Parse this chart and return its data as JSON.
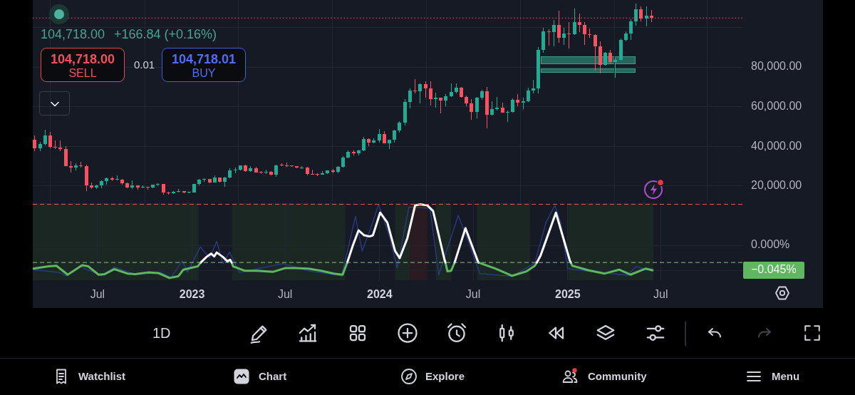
{
  "chart_data": [
    {
      "type": "candlestick",
      "x": [
        "2022-03-01",
        "2022-03-11",
        "2022-03-21",
        "2022-03-31",
        "2022-04-10",
        "2022-04-20",
        "2022-04-30",
        "2022-05-10",
        "2022-05-20",
        "2022-05-30",
        "2022-06-09",
        "2022-06-19",
        "2022-06-29",
        "2022-07-09",
        "2022-07-19",
        "2022-07-29",
        "2022-08-08",
        "2022-08-18",
        "2022-08-28",
        "2022-09-07",
        "2022-09-17",
        "2022-09-27",
        "2022-10-07",
        "2022-10-17",
        "2022-10-27",
        "2022-11-06",
        "2022-11-16",
        "2022-11-26",
        "2022-12-06",
        "2022-12-16",
        "2022-12-26",
        "2023-01-05",
        "2023-01-15",
        "2023-01-25",
        "2023-02-04",
        "2023-02-14",
        "2023-02-24",
        "2023-03-06",
        "2023-03-16",
        "2023-03-26",
        "2023-04-05",
        "2023-04-15",
        "2023-04-25",
        "2023-05-05",
        "2023-05-15",
        "2023-05-25",
        "2023-06-04",
        "2023-06-14",
        "2023-06-24",
        "2023-07-04",
        "2023-07-14",
        "2023-07-24",
        "2023-08-03",
        "2023-08-13",
        "2023-08-23",
        "2023-09-02",
        "2023-09-12",
        "2023-09-22",
        "2023-10-02",
        "2023-10-12",
        "2023-10-22",
        "2023-11-01",
        "2023-11-11",
        "2023-11-21",
        "2023-12-01",
        "2023-12-11",
        "2023-12-21",
        "2023-12-31",
        "2024-01-10",
        "2024-01-20",
        "2024-01-30",
        "2024-02-09",
        "2024-02-19",
        "2024-02-29",
        "2024-03-10",
        "2024-03-20",
        "2024-03-30",
        "2024-04-09",
        "2024-04-19",
        "2024-04-29",
        "2024-05-09",
        "2024-05-19",
        "2024-05-29",
        "2024-06-08",
        "2024-06-18",
        "2024-06-28",
        "2024-07-08",
        "2024-07-18",
        "2024-07-28",
        "2024-08-07",
        "2024-08-17",
        "2024-08-27",
        "2024-09-06",
        "2024-09-16",
        "2024-09-26",
        "2024-10-06",
        "2024-10-16",
        "2024-10-26",
        "2024-11-05",
        "2024-11-15",
        "2024-11-25",
        "2024-12-05",
        "2024-12-15",
        "2024-12-25",
        "2025-01-04",
        "2025-01-14",
        "2025-01-24",
        "2025-02-03",
        "2025-02-13",
        "2025-02-23",
        "2025-03-05",
        "2025-03-15",
        "2025-03-25",
        "2025-04-04",
        "2025-04-14",
        "2025-04-24",
        "2025-05-04",
        "2025-05-14",
        "2025-05-24",
        "2025-06-03",
        "2025-06-13"
      ],
      "ohlc": [
        [
          43200,
          45400,
          37600,
          39000
        ],
        [
          39000,
          42300,
          37600,
          41200
        ],
        [
          41200,
          48200,
          40500,
          45500
        ],
        [
          45500,
          47400,
          39200,
          39700
        ],
        [
          39700,
          42900,
          38500,
          39500
        ],
        [
          39500,
          42900,
          37700,
          38500
        ],
        [
          38500,
          40000,
          30000,
          30100
        ],
        [
          30100,
          32600,
          26700,
          29200
        ],
        [
          29200,
          31500,
          28000,
          30400
        ],
        [
          30400,
          32200,
          29200,
          30100
        ],
        [
          30100,
          30700,
          17600,
          20500
        ],
        [
          20500,
          21900,
          18700,
          19200
        ],
        [
          19200,
          20800,
          18600,
          20500
        ],
        [
          20500,
          22900,
          18900,
          22600
        ],
        [
          22600,
          24300,
          20700,
          23800
        ],
        [
          23800,
          24600,
          22400,
          23200
        ],
        [
          23200,
          25200,
          22800,
          23300
        ],
        [
          23300,
          23500,
          20800,
          21400
        ],
        [
          21400,
          21600,
          19000,
          19300
        ],
        [
          19300,
          22800,
          18600,
          20200
        ],
        [
          20200,
          20400,
          18200,
          19400
        ],
        [
          19400,
          20500,
          18900,
          19500
        ],
        [
          19500,
          19700,
          18200,
          19200
        ],
        [
          19200,
          20800,
          18900,
          20600
        ],
        [
          20600,
          21500,
          20100,
          20900
        ],
        [
          20900,
          21100,
          15600,
          16800
        ],
        [
          16800,
          17000,
          15500,
          16500
        ],
        [
          16500,
          17400,
          16000,
          17100
        ],
        [
          17100,
          18400,
          16900,
          17400
        ],
        [
          17400,
          17500,
          16500,
          16700
        ],
        [
          16700,
          17000,
          16300,
          16900
        ],
        [
          16900,
          21200,
          16800,
          20900
        ],
        [
          20900,
          23400,
          20400,
          23100
        ],
        [
          23100,
          24000,
          22300,
          23400
        ],
        [
          23400,
          23500,
          21400,
          21800
        ],
        [
          21800,
          25200,
          21600,
          24200
        ],
        [
          24200,
          24300,
          21900,
          22200
        ],
        [
          22200,
          24500,
          19600,
          24200
        ],
        [
          24200,
          28900,
          24100,
          27800
        ],
        [
          27800,
          29200,
          26600,
          28300
        ],
        [
          28300,
          30500,
          27800,
          30300
        ],
        [
          30300,
          30900,
          27100,
          27500
        ],
        [
          27500,
          30000,
          27200,
          28800
        ],
        [
          28800,
          29700,
          26700,
          26900
        ],
        [
          26900,
          27500,
          26200,
          26700
        ],
        [
          26700,
          28400,
          26100,
          27200
        ],
        [
          27200,
          27400,
          25400,
          25900
        ],
        [
          25900,
          30800,
          24800,
          30500
        ],
        [
          30500,
          31400,
          29900,
          30400
        ],
        [
          30400,
          31800,
          29700,
          30300
        ],
        [
          30300,
          30500,
          29600,
          29900
        ],
        [
          29900,
          30000,
          28900,
          29200
        ],
        [
          29200,
          29900,
          28700,
          29400
        ],
        [
          29400,
          29500,
          25200,
          26100
        ],
        [
          26100,
          28100,
          25800,
          25900
        ],
        [
          25900,
          26300,
          24900,
          25800
        ],
        [
          25800,
          27400,
          25600,
          26600
        ],
        [
          26600,
          28000,
          26000,
          27900
        ],
        [
          27900,
          28600,
          26600,
          27100
        ],
        [
          27100,
          30000,
          26500,
          29500
        ],
        [
          29500,
          35200,
          29400,
          34500
        ],
        [
          34500,
          37900,
          34100,
          37300
        ],
        [
          37300,
          37900,
          35500,
          36600
        ],
        [
          36600,
          38400,
          35600,
          37800
        ],
        [
          37800,
          44700,
          37600,
          43800
        ],
        [
          43800,
          43900,
          40200,
          41900
        ],
        [
          41900,
          44000,
          41400,
          42800
        ],
        [
          42800,
          48900,
          42000,
          46100
        ],
        [
          46100,
          47700,
          41500,
          41600
        ],
        [
          41600,
          43500,
          38500,
          43300
        ],
        [
          43300,
          48200,
          41900,
          47900
        ],
        [
          47900,
          52800,
          47000,
          51800
        ],
        [
          51800,
          64000,
          50500,
          62500
        ],
        [
          62500,
          69200,
          59000,
          68300
        ],
        [
          68300,
          73800,
          66700,
          67900
        ],
        [
          67900,
          71700,
          61500,
          71300
        ],
        [
          71300,
          72700,
          64500,
          69100
        ],
        [
          69100,
          72800,
          60700,
          63900
        ],
        [
          63900,
          67200,
          59600,
          64400
        ],
        [
          64400,
          64700,
          56500,
          63100
        ],
        [
          63100,
          66400,
          60200,
          65200
        ],
        [
          65200,
          71900,
          65000,
          67500
        ],
        [
          67500,
          71900,
          66600,
          69600
        ],
        [
          69600,
          70000,
          64500,
          64900
        ],
        [
          64900,
          65800,
          60400,
          61600
        ],
        [
          61600,
          63900,
          53500,
          57500
        ],
        [
          57500,
          64900,
          54300,
          64600
        ],
        [
          64600,
          68400,
          63300,
          67800
        ],
        [
          67800,
          70000,
          49000,
          56000
        ],
        [
          56000,
          62700,
          55500,
          58700
        ],
        [
          58700,
          65000,
          58000,
          59400
        ],
        [
          59400,
          62200,
          56900,
          57000
        ],
        [
          57000,
          58200,
          52500,
          57300
        ],
        [
          57300,
          64100,
          57100,
          63300
        ],
        [
          63300,
          66500,
          60300,
          62100
        ],
        [
          62100,
          64500,
          58900,
          62600
        ],
        [
          62600,
          69500,
          62400,
          68000
        ],
        [
          68000,
          73600,
          66800,
          69400
        ],
        [
          69400,
          89900,
          66800,
          88700
        ],
        [
          88700,
          99600,
          87100,
          98000
        ],
        [
          98000,
          99000,
          90800,
          97700
        ],
        [
          97700,
          103900,
          90500,
          101200
        ],
        [
          101200,
          108300,
          92200,
          94900
        ],
        [
          94900,
          99900,
          91300,
          96900
        ],
        [
          96900,
          102700,
          89300,
          96500
        ],
        [
          96500,
          109500,
          96300,
          102500
        ],
        [
          102500,
          106800,
          97800,
          101300
        ],
        [
          101300,
          102500,
          91200,
          96600
        ],
        [
          96600,
          99400,
          94900,
          96200
        ],
        [
          96200,
          96500,
          78200,
          90600
        ],
        [
          90600,
          92800,
          76600,
          81000
        ],
        [
          81000,
          87500,
          80800,
          87300
        ],
        [
          87300,
          88700,
          81600,
          82600
        ],
        [
          82600,
          84700,
          74500,
          83600
        ],
        [
          83600,
          94500,
          83100,
          93600
        ],
        [
          93600,
          97900,
          92800,
          96900
        ],
        [
          96900,
          104100,
          93500,
          102900
        ],
        [
          102900,
          111900,
          101000,
          109000
        ],
        [
          109000,
          110400,
          103100,
          104600
        ],
        [
          104600,
          110500,
          100400,
          106000
        ],
        [
          106000,
          108900,
          102700,
          104718
        ]
      ],
      "colors": [
        "#f7525f",
        "#22ab94",
        "#22ab94",
        "#f7525f",
        "#f7525f",
        "#f7525f",
        "#f7525f",
        "#f7525f",
        "#22ab94",
        "#f7525f",
        "#f7525f",
        "#f7525f",
        "#22ab94",
        "#22ab94",
        "#22ab94",
        "#f7525f",
        "#22ab94",
        "#f7525f",
        "#f7525f",
        "#22ab94",
        "#f7525f",
        "#22ab94",
        "#f7525f",
        "#22ab94",
        "#22ab94",
        "#f7525f",
        "#f7525f",
        "#22ab94",
        "#22ab94",
        "#f7525f",
        "#22ab94",
        "#22ab94",
        "#22ab94",
        "#22ab94",
        "#f7525f",
        "#22ab94",
        "#f7525f",
        "#22ab94",
        "#22ab94",
        "#22ab94",
        "#22ab94",
        "#f7525f",
        "#22ab94",
        "#f7525f",
        "#f7525f",
        "#22ab94",
        "#f7525f",
        "#22ab94",
        "#f7525f",
        "#f7525f",
        "#f7525f",
        "#f7525f",
        "#22ab94",
        "#f7525f",
        "#f7525f",
        "#f7525f",
        "#22ab94",
        "#22ab94",
        "#f7525f",
        "#22ab94",
        "#22ab94",
        "#22ab94",
        "#f7525f",
        "#22ab94",
        "#22ab94",
        "#f7525f",
        "#22ab94",
        "#22ab94",
        "#f7525f",
        "#22ab94",
        "#22ab94",
        "#22ab94",
        "#22ab94",
        "#22ab94",
        "#f7525f",
        "#22ab94",
        "#f7525f",
        "#f7525f",
        "#22ab94",
        "#f7525f",
        "#22ab94",
        "#22ab94",
        "#22ab94",
        "#f7525f",
        "#f7525f",
        "#f7525f",
        "#22ab94",
        "#22ab94",
        "#f7525f",
        "#22ab94",
        "#22ab94",
        "#f7525f",
        "#22ab94",
        "#22ab94",
        "#f7525f",
        "#22ab94",
        "#22ab94",
        "#22ab94",
        "#22ab94",
        "#22ab94",
        "#f7525f",
        "#22ab94",
        "#f7525f",
        "#22ab94",
        "#f7525f",
        "#22ab94",
        "#f7525f",
        "#f7525f",
        "#f7525f",
        "#f7525f",
        "#f7525f",
        "#22ab94",
        "#f7525f",
        "#22ab94",
        "#22ab94",
        "#22ab94",
        "#22ab94",
        "#22ab94",
        "#f7525f",
        "#22ab94",
        "#f7525f"
      ],
      "xlim": [
        "2022-02-25",
        "2025-12-07"
      ],
      "xticks": [
        {
          "value": "2022-07-01",
          "label": null
        },
        {
          "value": "2023-01-01",
          "label": null
        },
        {
          "value": "2023-07-01",
          "label": null
        },
        {
          "value": "2024-01-01",
          "label": null
        },
        {
          "value": "2024-07-01",
          "label": null
        },
        {
          "value": "2025-01-01",
          "label": null
        },
        {
          "value": "2025-07-01",
          "label": null
        }
      ],
      "ylim": [
        11700,
        113800
      ],
      "yticks": [
        {
          "value": 20000,
          "label": "20,000.00"
        },
        {
          "value": 40000,
          "label": "40,000.00"
        },
        {
          "value": 60000,
          "label": "60,000.00"
        },
        {
          "value": 80000,
          "label": "80,000.00"
        },
        {
          "value": 100000,
          "label": null
        }
      ],
      "grid": true,
      "tick_labels": "y",
      "ref_lines": [
        {
          "axis": "y",
          "value": 104718,
          "color": "#f7525f",
          "line_style": "dotted"
        }
      ],
      "annotations": [
        "104,718.00",
        "+166.84 (+0.16%)",
        "104,718.00",
        "SELL",
        "0.01",
        "104,718.01",
        "BUY"
      ]
    },
    {
      "type": "line",
      "series": [
        {
          "color": "#ffffff",
          "x": [
            "2023-01-18",
            "2023-01-29",
            "2023-02-07",
            "2023-02-13",
            "2023-02-18",
            "2023-03-02",
            "2023-03-11",
            "2023-03-16",
            "2023-03-19",
            "2023-06-01",
            "2023-10-30",
            "2023-11-10",
            "2023-11-21",
            "2023-12-02",
            "2023-12-12",
            "2023-12-19",
            "2024-01-02",
            "2024-01-16",
            "2024-01-31",
            "2024-02-09",
            "2024-02-24",
            "2024-03-10",
            "2024-03-20",
            "2024-04-03",
            "2024-04-14",
            "2024-05-06",
            "2024-05-08",
            "2024-05-17",
            "2024-05-26",
            "2024-06-16",
            "2024-07-11",
            "2024-09-01",
            "2024-11-02",
            "2024-11-09",
            "2024-12-09",
            "2025-01-05",
            "2025-01-07"
          ],
          "values": [
            -0.031,
            -0.021,
            -0.015,
            -0.02,
            -0.013,
            -0.021,
            -0.029,
            -0.026,
            -0.031,
            null,
            -0.031,
            0.0,
            0.027,
            0.018,
            0.016,
            0.018,
            0.059,
            0.041,
            -0.01,
            -0.023,
            0.013,
            0.072,
            0.074,
            0.072,
            0.062,
            -0.025,
            -0.031,
            null,
            -0.031,
            0.031,
            -0.031,
            null,
            -0.031,
            -0.019,
            0.059,
            -0.027,
            -0.031
          ]
        },
        {
          "color": "#5fb760",
          "x": [
            "2022-02-26",
            "2022-03-28",
            "2022-04-12",
            "2022-05-04",
            "2022-06-01",
            "2022-06-13",
            "2022-07-03",
            "2022-07-15",
            "2022-08-03",
            "2022-08-28",
            "2022-09-12",
            "2022-10-07",
            "2022-10-27",
            "2022-11-18",
            "2022-12-05",
            "2022-12-15",
            "2023-01-12",
            "2023-01-18",
            "2023-02-15",
            "2023-03-19",
            "2023-03-22",
            "2023-04-14",
            "2023-05-08",
            "2023-06-07",
            "2023-07-02",
            "2023-07-21",
            "2023-08-15",
            "2023-09-09",
            "2023-10-04",
            "2023-10-21",
            "2023-10-30",
            "2024-01-15",
            "2024-05-08",
            "2024-05-12",
            "2024-05-19",
            "2024-05-26",
            "2024-06-15",
            "2024-07-11",
            "2024-08-13",
            "2024-09-15",
            "2024-10-13",
            "2024-10-29",
            "2024-11-02",
            "2024-12-01",
            "2025-01-07",
            "2025-01-10",
            "2025-02-10",
            "2025-03-14",
            "2025-04-11",
            "2025-05-03",
            "2025-06-02",
            "2025-06-15"
          ],
          "values": [
            -0.042,
            -0.038,
            -0.037,
            -0.053,
            -0.036,
            -0.038,
            -0.053,
            -0.052,
            -0.043,
            -0.051,
            -0.052,
            -0.049,
            -0.05,
            -0.059,
            -0.056,
            -0.044,
            -0.038,
            -0.031,
            null,
            -0.031,
            -0.038,
            -0.046,
            -0.046,
            -0.048,
            -0.041,
            -0.041,
            -0.042,
            -0.046,
            -0.051,
            -0.053,
            -0.031,
            null,
            -0.031,
            -0.047,
            -0.046,
            -0.031,
            null,
            -0.031,
            -0.042,
            -0.055,
            -0.047,
            -0.037,
            -0.031,
            null,
            -0.031,
            -0.037,
            -0.045,
            -0.051,
            -0.044,
            -0.053,
            -0.042,
            -0.045
          ]
        },
        {
          "color": "#2b3c8a",
          "x": [
            "2022-02-26",
            "2022-04-17",
            "2022-05-02",
            "2022-05-27",
            "2022-07-10",
            "2022-08-03",
            "2022-09-12",
            "2022-11-01",
            "2022-11-21",
            "2022-12-13",
            "2022-12-23",
            "2023-01-17",
            "2023-02-04",
            "2023-02-18",
            "2023-03-02",
            "2023-03-15",
            "2023-04-03",
            "2023-06-27",
            "2023-08-15",
            "2023-10-19",
            "2023-11-15",
            "2023-11-28",
            "2023-12-15",
            "2023-12-30",
            "2024-01-21",
            "2024-02-04",
            "2024-02-27",
            "2024-04-08",
            "2024-04-25",
            "2024-06-02",
            "2024-06-24",
            "2024-07-14",
            "2024-09-15",
            "2024-10-29",
            "2024-11-20",
            "2024-12-07",
            "2024-12-18",
            "2025-01-01",
            "2025-02-10",
            "2025-04-28",
            "2025-05-14",
            "2025-06-15"
          ],
          "values": [
            -0.044,
            -0.049,
            -0.055,
            -0.038,
            -0.055,
            -0.039,
            -0.053,
            -0.049,
            -0.058,
            -0.028,
            -0.049,
            -0.003,
            -0.023,
            0.007,
            -0.033,
            -0.012,
            -0.049,
            -0.033,
            -0.046,
            -0.055,
            0.052,
            -0.01,
            0.032,
            0.074,
            0.013,
            -0.041,
            0.069,
            0.067,
            -0.053,
            0.054,
            0.001,
            -0.051,
            -0.056,
            -0.032,
            0.042,
            0.072,
            0.042,
            -0.042,
            -0.047,
            -0.054,
            -0.038,
            -0.047
          ]
        }
      ],
      "xlim": [
        "2022-02-25",
        "2025-12-07"
      ],
      "xticks": [
        {
          "value": "2022-07-01",
          "label": "Jul"
        },
        {
          "value": "2023-01-01",
          "label": "2023"
        },
        {
          "value": "2023-07-01",
          "label": "Jul"
        },
        {
          "value": "2024-01-01",
          "label": "2024"
        },
        {
          "value": "2024-07-01",
          "label": "Jul"
        },
        {
          "value": "2025-01-01",
          "label": "2025"
        },
        {
          "value": "2025-07-01",
          "label": "Jul"
        }
      ],
      "ylim": [
        -0.063,
        0.076
      ],
      "yticks": [
        {
          "value": 0,
          "label": "0.000%"
        },
        {
          "value": -0.045,
          "label": "−0.045%"
        }
      ],
      "grid": true,
      "ref_lines": [
        {
          "axis": "y",
          "value": 0.074,
          "color": "#f7525f",
          "line_style": "dashed"
        },
        {
          "axis": "y",
          "value": -0.031,
          "color": "#8fbf8f",
          "line_style": "dashed"
        }
      ],
      "bands": [
        {
          "axis": "x",
          "from": "2022-02-25",
          "to": "2023-01-14",
          "color": "#1a2723"
        },
        {
          "axis": "x",
          "from": "2023-03-20",
          "to": "2023-10-26",
          "color": "#1a2723"
        },
        {
          "axis": "x",
          "from": "2024-01-31",
          "to": "2024-02-29",
          "color": "#1a2723"
        },
        {
          "axis": "x",
          "from": "2024-02-29",
          "to": "2024-04-03",
          "color": "#2a1a22"
        },
        {
          "axis": "x",
          "from": "2024-04-19",
          "to": "2024-05-19",
          "color": "#1a2723"
        },
        {
          "axis": "x",
          "from": "2024-07-08",
          "to": "2024-10-20",
          "color": "#1a2723"
        },
        {
          "axis": "x",
          "from": "2025-01-02",
          "to": "2025-06-17",
          "color": "#1a2723"
        }
      ]
    },
    {
      "type": "other",
      "annotations": [
        "1D",
        "Watchlist",
        "Chart",
        "Explore",
        "Community",
        "Menu"
      ]
    }
  ]
}
